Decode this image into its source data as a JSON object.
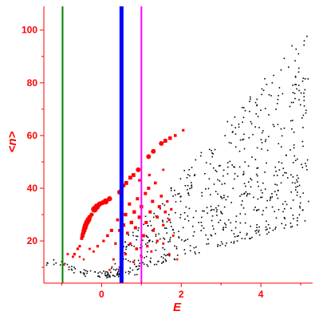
{
  "chart_data": {
    "type": "scatter",
    "title": "",
    "xlabel": "E",
    "ylabel": "<n>",
    "xlim": [
      -1.45,
      5.3
    ],
    "ylim": [
      4,
      109
    ],
    "xticks": [
      0,
      2,
      4
    ],
    "xtick_labels": [
      "0",
      "2",
      "4"
    ],
    "yticks": [
      20,
      40,
      60,
      80,
      100
    ],
    "ytick_labels": [
      "20",
      "40",
      "60",
      "80",
      "100"
    ],
    "grid": false,
    "axis_color": "#ff0000",
    "vertical_lines": [
      {
        "x": -0.98,
        "color": "#008000"
      },
      {
        "x": 0.5,
        "color": "#0000ff"
      },
      {
        "x": 1.0,
        "color": "#ff00ff"
      }
    ],
    "series": [
      {
        "color": "#ff0000",
        "points": [
          [
            -0.55,
            18,
            1.6
          ],
          [
            -0.5,
            21,
            2.0
          ],
          [
            -0.48,
            22,
            2.4
          ],
          [
            -0.46,
            23,
            2.8
          ],
          [
            -0.44,
            24,
            3.2
          ],
          [
            -0.42,
            25,
            3.4
          ],
          [
            -0.4,
            26,
            3.4
          ],
          [
            -0.37,
            27,
            3.6
          ],
          [
            -0.33,
            28,
            3.6
          ],
          [
            -0.3,
            29,
            3.0
          ],
          [
            -0.25,
            30,
            2.6
          ],
          [
            -0.18,
            32,
            4.2
          ],
          [
            -0.12,
            33,
            4.0
          ],
          [
            -0.05,
            34,
            3.2
          ],
          [
            0.02,
            34.5,
            3.0
          ],
          [
            0.1,
            35,
            3.8
          ],
          [
            0.2,
            36,
            3.2
          ],
          [
            0.45,
            38.5,
            3.0
          ],
          [
            0.5,
            39.5,
            2.6
          ],
          [
            0.55,
            41,
            2.6
          ],
          [
            0.62,
            42,
            2.4
          ],
          [
            0.72,
            44,
            2.4
          ],
          [
            0.8,
            45,
            2.4
          ],
          [
            0.92,
            47,
            3.0
          ],
          [
            1.18,
            52,
            3.0
          ],
          [
            1.3,
            54,
            3.0
          ],
          [
            1.5,
            57,
            3.0
          ],
          [
            1.6,
            58,
            2.4
          ],
          [
            1.72,
            59,
            2.2
          ],
          [
            1.85,
            60,
            1.8
          ],
          [
            2.05,
            62,
            1.6
          ],
          [
            -0.95,
            11,
            1.2
          ],
          [
            -0.85,
            15,
            1.4
          ],
          [
            -0.72,
            14,
            1.4
          ],
          [
            -0.68,
            15,
            1.6
          ],
          [
            -0.6,
            17,
            1.6
          ],
          [
            -0.55,
            14,
            1.2
          ],
          [
            -0.45,
            13,
            1.2
          ],
          [
            -0.3,
            17,
            1.4
          ],
          [
            -0.2,
            16,
            1.4
          ],
          [
            -0.1,
            18,
            1.6
          ],
          [
            0.05,
            20,
            1.6
          ],
          [
            0.15,
            22,
            1.8
          ],
          [
            0.25,
            24,
            2.0
          ],
          [
            0.35,
            19,
            1.6
          ],
          [
            0.4,
            28,
            1.8
          ],
          [
            0.45,
            24,
            1.8
          ],
          [
            0.55,
            26,
            2.2
          ],
          [
            0.6,
            30,
            2.2
          ],
          [
            0.65,
            23,
            1.8
          ],
          [
            0.7,
            34,
            2.0
          ],
          [
            0.72,
            19,
            1.6
          ],
          [
            0.75,
            27,
            2.2
          ],
          [
            0.82,
            31,
            2.2
          ],
          [
            0.85,
            25,
            2.0
          ],
          [
            0.88,
            17,
            1.8
          ],
          [
            0.9,
            36,
            2.0
          ],
          [
            0.95,
            29,
            2.2
          ],
          [
            1.0,
            33,
            2.2
          ],
          [
            1.05,
            22,
            2.0
          ],
          [
            1.1,
            38,
            2.0
          ],
          [
            1.12,
            27,
            2.0
          ],
          [
            1.18,
            40,
            2.0
          ],
          [
            1.22,
            31,
            2.0
          ],
          [
            1.28,
            35,
            2.0
          ],
          [
            1.3,
            24,
            1.8
          ],
          [
            1.35,
            42,
            1.8
          ],
          [
            1.4,
            29,
            1.8
          ],
          [
            1.45,
            33,
            2.0
          ],
          [
            1.5,
            37,
            1.8
          ],
          [
            1.55,
            26,
            1.6
          ],
          [
            1.6,
            31,
            1.8
          ],
          [
            1.65,
            35,
            1.6
          ],
          [
            1.7,
            28,
            1.6
          ],
          [
            1.75,
            32,
            1.6
          ],
          [
            1.8,
            22,
            1.4
          ],
          [
            0.3,
            13,
            1.4
          ],
          [
            0.6,
            15,
            1.6
          ],
          [
            0.8,
            12,
            1.4
          ],
          [
            1.0,
            14,
            1.6
          ],
          [
            1.15,
            18,
            1.6
          ],
          [
            1.25,
            16,
            1.4
          ],
          [
            1.4,
            20,
            1.6
          ],
          [
            1.55,
            19,
            1.4
          ],
          [
            1.7,
            15,
            1.4
          ],
          [
            0.2,
            9,
            1.2
          ],
          [
            0.45,
            10,
            1.2
          ],
          [
            1.9,
            13,
            1.2
          ],
          [
            1.2,
            45,
            1.6
          ],
          [
            0.95,
            43,
            1.6
          ],
          [
            1.55,
            47,
            1.4
          ]
        ]
      },
      {
        "color": "#000000",
        "generated": true
      }
    ]
  }
}
